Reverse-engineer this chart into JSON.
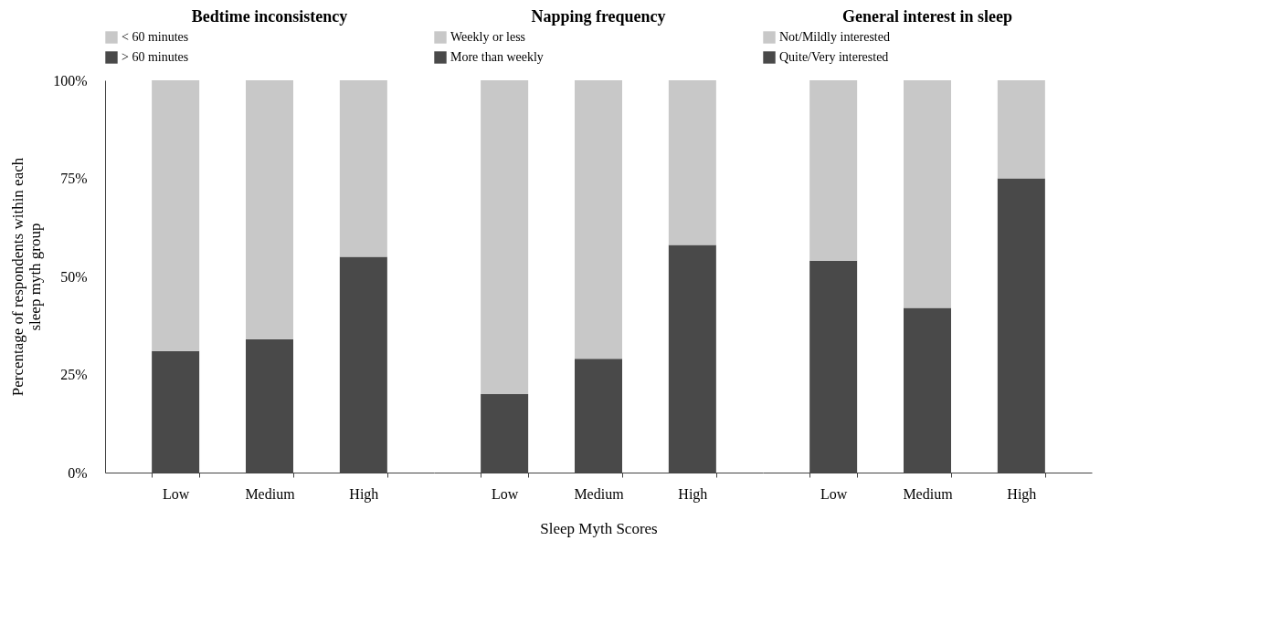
{
  "chart_data": [
    {
      "type": "bar",
      "title": "Bedtime inconsistency",
      "ylabel": "Percentage of respondents within each sleep myth group",
      "categories": [
        "Low",
        "Medium",
        "High"
      ],
      "stacked": true,
      "legend": "top",
      "grid": false,
      "ylim": [
        0,
        100
      ],
      "yticks": [
        {
          "value": 0,
          "label": "0%"
        },
        {
          "value": 25,
          "label": "25%"
        },
        {
          "value": 50,
          "label": "50%"
        },
        {
          "value": 75,
          "label": "75%"
        },
        {
          "value": 100,
          "label": "100%"
        }
      ],
      "series": [
        {
          "name": "> 60 minutes",
          "color": "#494949",
          "values": [
            31,
            34,
            55
          ]
        },
        {
          "name": "< 60 minutes",
          "color": "#c8c8c8",
          "values": [
            69,
            66,
            45
          ]
        }
      ]
    },
    {
      "type": "bar",
      "title": "Napping frequency",
      "xlabel": "Sleep Myth Scores",
      "categories": [
        "Low",
        "Medium",
        "High"
      ],
      "stacked": true,
      "legend": "top",
      "grid": false,
      "tick_labels": "x",
      "ylim": [
        0,
        100
      ],
      "series": [
        {
          "name": "More than weekly",
          "color": "#494949",
          "values": [
            20,
            29,
            58
          ]
        },
        {
          "name": "Weekly or less",
          "color": "#c8c8c8",
          "values": [
            80,
            71,
            42
          ]
        }
      ]
    },
    {
      "type": "bar",
      "title": "General interest in sleep",
      "categories": [
        "Low",
        "Medium",
        "High"
      ],
      "stacked": true,
      "legend": "top",
      "grid": false,
      "tick_labels": "x",
      "ylim": [
        0,
        100
      ],
      "series": [
        {
          "name": "Quite/Very interested",
          "color": "#494949",
          "values": [
            54,
            42,
            75
          ]
        },
        {
          "name": "Not/Mildly interested",
          "color": "#c8c8c8",
          "values": [
            46,
            58,
            25
          ]
        }
      ]
    }
  ]
}
